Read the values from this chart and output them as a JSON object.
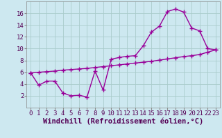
{
  "x": [
    0,
    1,
    2,
    3,
    4,
    5,
    6,
    7,
    8,
    9,
    10,
    11,
    12,
    13,
    14,
    15,
    16,
    17,
    18,
    19,
    20,
    21,
    22,
    23
  ],
  "y_wavy": [
    5.9,
    3.8,
    4.5,
    4.5,
    2.5,
    2.0,
    2.1,
    1.8,
    6.2,
    3.0,
    8.2,
    8.5,
    8.7,
    8.8,
    10.5,
    12.8,
    13.8,
    16.3,
    16.7,
    16.2,
    13.5,
    13.0,
    10.0,
    9.8
  ],
  "y_line": [
    5.9,
    6.0,
    6.1,
    6.2,
    6.35,
    6.45,
    6.55,
    6.65,
    6.8,
    6.95,
    7.1,
    7.25,
    7.4,
    7.55,
    7.7,
    7.85,
    8.05,
    8.25,
    8.45,
    8.65,
    8.8,
    9.0,
    9.4,
    9.8
  ],
  "line_color": "#990099",
  "bg_color": "#cde8f0",
  "grid_color": "#aacccc",
  "xlabel": "Windchill (Refroidissement éolien,°C)",
  "xlim": [
    -0.5,
    23.5
  ],
  "ylim": [
    0,
    18
  ],
  "xticks": [
    0,
    1,
    2,
    3,
    4,
    5,
    6,
    7,
    8,
    9,
    10,
    11,
    12,
    13,
    14,
    15,
    16,
    17,
    18,
    19,
    20,
    21,
    22,
    23
  ],
  "yticks": [
    2,
    4,
    6,
    8,
    10,
    12,
    14,
    16
  ],
  "marker": "+",
  "markersize": 4,
  "linewidth": 1.0,
  "xlabel_fontsize": 7.5,
  "tick_fontsize": 6.5
}
